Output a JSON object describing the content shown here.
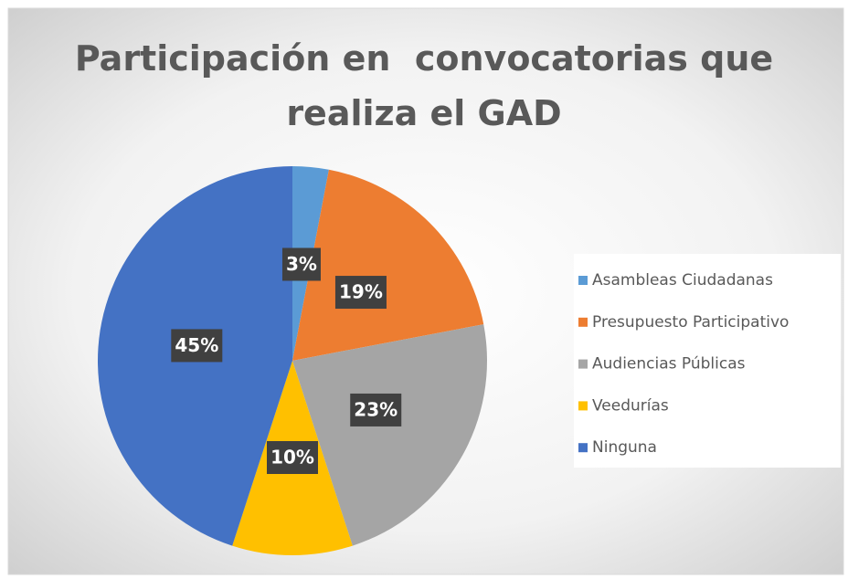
{
  "chart_data": {
    "type": "pie",
    "title": "Participación en  convocatorias que realiza el GAD",
    "categories": [
      "Asambleas Ciudadanas",
      "Presupuesto Participativo",
      "Audiencias Públicas",
      "Veedurías",
      "Ninguna"
    ],
    "values": [
      3,
      19,
      23,
      10,
      45
    ],
    "value_labels": [
      "3%",
      "19%",
      "23%",
      "10%",
      "45%"
    ],
    "colors": [
      "#5b9bd5",
      "#ed7d31",
      "#a5a5a5",
      "#ffc000",
      "#4472c4"
    ],
    "legend": "right"
  }
}
